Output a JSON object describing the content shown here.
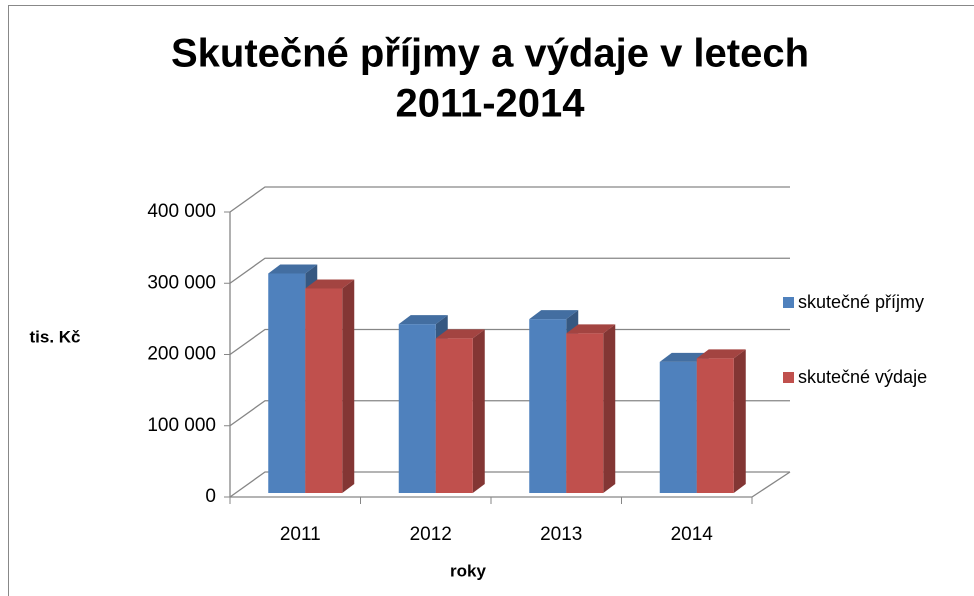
{
  "chart_data": {
    "type": "bar3d",
    "title": [
      "Skutečné příjmy a výdaje v letech",
      "2011-2014"
    ],
    "y_label": "tis. Kč",
    "x_label": "roky",
    "categories": [
      "2011",
      "2012",
      "2013",
      "2014"
    ],
    "series": [
      {
        "name": "skutečné příjmy",
        "color": "#4f81bd",
        "values": [
          308000,
          237000,
          244000,
          184000
        ]
      },
      {
        "name": "skutečné výdaje",
        "color": "#c0504d",
        "values": [
          287000,
          217000,
          224000,
          189000
        ]
      }
    ],
    "ylim": [
      0,
      400000
    ],
    "yticks": [
      0,
      {
        "value": 100000,
        "label": "100 000"
      },
      {
        "value": 200000,
        "label": "200 000"
      },
      {
        "value": 300000,
        "label": "300 000"
      },
      {
        "value": 400000,
        "label": "400 000"
      }
    ],
    "grid": true,
    "legend": "right"
  }
}
